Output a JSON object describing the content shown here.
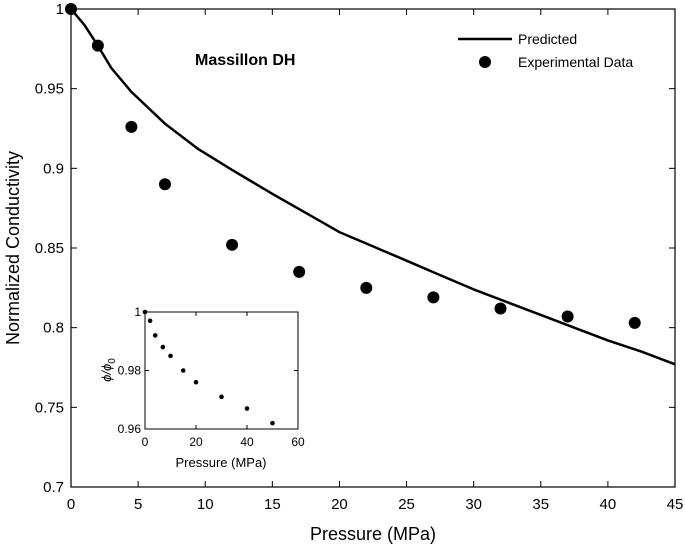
{
  "chart_data": [
    {
      "type": "line+scatter",
      "title": "Massillon DH",
      "xlabel": "Pressure (MPa)",
      "ylabel": "Normalized Conductivity",
      "xlim": [
        0,
        45
      ],
      "ylim": [
        0.7,
        1.0
      ],
      "xticks": [
        "0",
        "5",
        "10",
        "15",
        "20",
        "25",
        "30",
        "35",
        "40",
        "45"
      ],
      "yticks": [
        "0.7",
        "0.75",
        "0.8",
        "0.85",
        "0.9",
        "0.95",
        "1"
      ],
      "legend_position": "top-right",
      "series": [
        {
          "name": "Predicted",
          "style": "line",
          "x": [
            0,
            1,
            2,
            3,
            4.5,
            7,
            9.5,
            12,
            15,
            17.5,
            20,
            22.5,
            25,
            27.5,
            30,
            32.5,
            35,
            37.5,
            40,
            42.5,
            45
          ],
          "y": [
            1.0,
            0.99,
            0.977,
            0.963,
            0.948,
            0.928,
            0.912,
            0.899,
            0.884,
            0.872,
            0.86,
            0.851,
            0.842,
            0.833,
            0.824,
            0.816,
            0.808,
            0.8,
            0.792,
            0.785,
            0.777
          ]
        },
        {
          "name": "Experimental Data",
          "style": "markers",
          "x": [
            0,
            2,
            4.5,
            7,
            12,
            17,
            22,
            27,
            32,
            37,
            42
          ],
          "y": [
            1.0,
            0.977,
            0.926,
            0.89,
            0.852,
            0.835,
            0.825,
            0.819,
            0.812,
            0.807,
            0.803
          ]
        }
      ],
      "inset": {
        "type": "scatter",
        "xlabel": "Pressure (MPa)",
        "ylabel": "ϕ/ϕ",
        "ylabel_subscript": "0",
        "xlim": [
          0,
          60
        ],
        "ylim": [
          0.96,
          1.0
        ],
        "xticks": [
          "0",
          "20",
          "40",
          "60"
        ],
        "yticks": [
          "0.96",
          "0.98",
          "1"
        ],
        "x": [
          0,
          2,
          4,
          7,
          10,
          15,
          20,
          30,
          40,
          50
        ],
        "y": [
          1.0,
          0.997,
          0.992,
          0.988,
          0.985,
          0.98,
          0.976,
          0.971,
          0.967,
          0.962
        ]
      }
    }
  ]
}
